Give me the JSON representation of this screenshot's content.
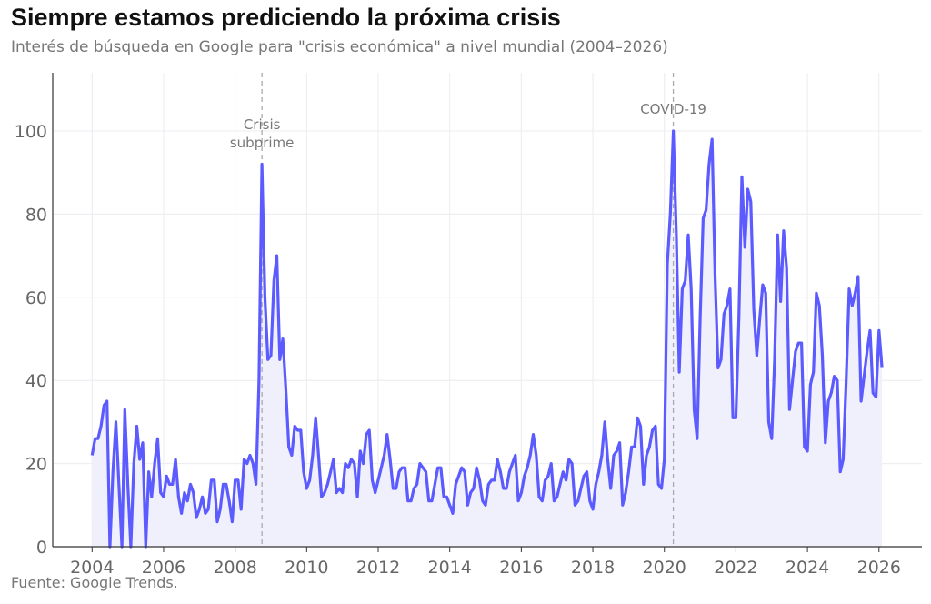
{
  "chart_data": {
    "type": "line",
    "title": "Siempre estamos prediciendo la próxima crisis",
    "subtitle": "Interés de búsqueda en Google para \"crisis económica\" a nivel mundial (2004–2026)",
    "source": "Fuente: Google Trends.",
    "xlabel": "",
    "ylabel": "",
    "x_start": "2004-01",
    "frequency": "monthly",
    "xlim": [
      2002.9,
      2027.2
    ],
    "ylim": [
      0,
      114
    ],
    "x_ticks": [
      "2004",
      "2006",
      "2008",
      "2010",
      "2012",
      "2014",
      "2016",
      "2018",
      "2020",
      "2022",
      "2024",
      "2026"
    ],
    "y_ticks": [
      "0",
      "20",
      "40",
      "60",
      "80",
      "100"
    ],
    "grid": true,
    "series": [
      {
        "name": "crisis económica",
        "color": "#5b5bff",
        "fill": "#f0f0fd",
        "values": [
          22,
          26,
          26,
          29,
          34,
          35,
          0,
          18,
          30,
          15,
          0,
          33,
          15,
          0,
          20,
          29,
          21,
          25,
          0,
          18,
          12,
          20,
          26,
          13,
          12,
          17,
          15,
          15,
          21,
          12,
          8,
          13,
          11,
          15,
          13,
          7,
          9,
          12,
          8,
          9,
          16,
          16,
          6,
          9,
          15,
          15,
          11,
          6,
          16,
          16,
          9,
          21,
          20,
          22,
          20,
          15,
          40,
          92,
          60,
          45,
          46,
          64,
          70,
          45,
          50,
          38,
          24,
          22,
          29,
          28,
          28,
          18,
          14,
          16,
          22,
          31,
          22,
          12,
          13,
          15,
          18,
          21,
          13,
          14,
          13,
          20,
          19,
          21,
          20,
          12,
          23,
          20,
          27,
          28,
          16,
          13,
          16,
          19,
          22,
          27,
          21,
          14,
          14,
          18,
          19,
          19,
          11,
          11,
          14,
          15,
          20,
          19,
          18,
          11,
          11,
          15,
          19,
          19,
          12,
          12,
          10,
          8,
          15,
          17,
          19,
          18,
          10,
          13,
          14,
          19,
          16,
          11,
          10,
          15,
          16,
          16,
          21,
          18,
          14,
          14,
          18,
          20,
          22,
          11,
          13,
          17,
          19,
          22,
          27,
          22,
          12,
          11,
          16,
          17,
          20,
          11,
          12,
          15,
          18,
          16,
          21,
          20,
          10,
          11,
          14,
          17,
          18,
          11,
          9,
          15,
          18,
          22,
          30,
          21,
          14,
          22,
          23,
          25,
          10,
          13,
          18,
          24,
          24,
          31,
          29,
          15,
          22,
          24,
          28,
          29,
          15,
          14,
          21,
          68,
          80,
          100,
          75,
          42,
          62,
          64,
          75,
          62,
          33,
          26,
          55,
          79,
          81,
          92,
          98,
          65,
          43,
          45,
          56,
          58,
          62,
          31,
          31,
          55,
          89,
          72,
          86,
          83,
          57,
          46,
          55,
          63,
          61,
          30,
          26,
          45,
          75,
          59,
          76,
          67,
          33,
          40,
          47,
          49,
          49,
          24,
          23,
          39,
          42,
          61,
          58,
          46,
          25,
          35,
          37,
          41,
          40,
          18,
          21,
          40,
          62,
          58,
          61,
          65,
          35,
          41,
          47,
          52,
          37,
          36,
          52,
          43
        ]
      }
    ],
    "annotations": [
      {
        "x": 2008.75,
        "label_lines": [
          "Crisis",
          "subprime"
        ]
      },
      {
        "x": 2020.25,
        "label_lines": [
          "COVID-19"
        ]
      }
    ]
  }
}
